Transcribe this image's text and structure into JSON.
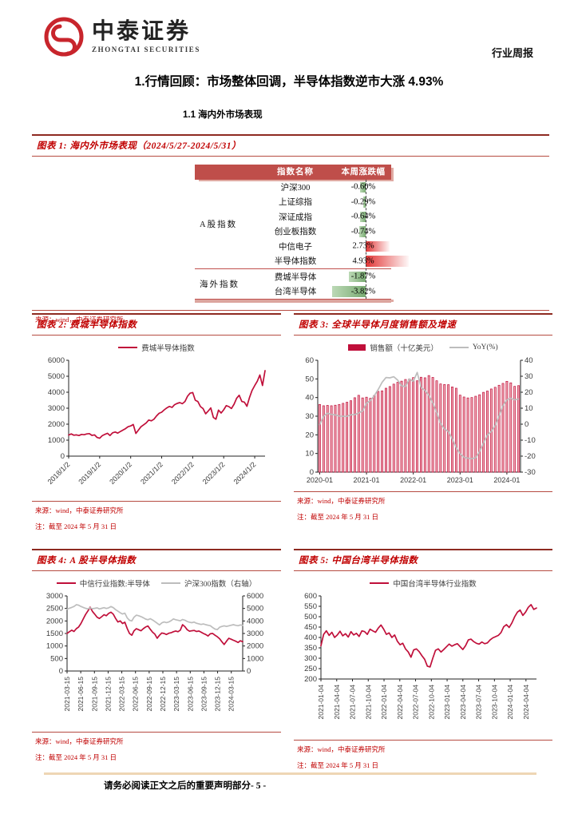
{
  "page": {
    "logo": {
      "cn": "中泰证券",
      "en": "ZHONGTAI SECURITIES"
    },
    "header_right": "行业周报",
    "title": "1.行情回顾：市场整体回调，半导体指数逆市大涨 4.93%",
    "subtitle": "1.1 海内外市场表现",
    "footer": {
      "disclaimer": "请务必阅读正文之后的重要声明部分",
      "page_number": "- 5 -"
    }
  },
  "figures": [
    {
      "title": "图表 1: 海内外市场表现（2024/5/27-2024/5/31）",
      "source": "来源：wind，中泰证券研究所"
    },
    {
      "title": "图表 2: 费城半导体指数",
      "source": "来源：wind，中泰证券研究所",
      "note": "注：截至 2024 年 5 月 31 日"
    },
    {
      "title": "图表 3: 全球半导体月度销售额及增速",
      "source": "来源：wind，中泰证券研究所",
      "note": "注：截至 2024 年 5 月 31 日"
    },
    {
      "title": "图表 4: A 股半导体指数",
      "source": "来源：wind，中泰证券研究所",
      "note": "注：截至 2024 年 5 月 31 日"
    },
    {
      "title": "图表 5: 中国台湾半导体指数",
      "source": "来源：wind，中泰证券研究所",
      "note": "注：截至 2024 年 5 月 31 日"
    }
  ],
  "colors": {
    "accent_red": "#c00000",
    "rule_dark": "#8e2a21",
    "rule_red": "#b64b41",
    "table_header_bg": "#bf4e4a",
    "chart_red": "#c00f3a",
    "chart_gray": "#bdbdbd",
    "bar_up": "#e23535",
    "bar_down": "#7fae77",
    "footer_rule": "#eed6b4",
    "logo_red": "#c8252c"
  },
  "chart_data": [
    {
      "type": "table",
      "title": "海内外市场表现（2024/5/27-2024/5/31）",
      "columns": [
        "指数名称",
        "本周涨跌幅"
      ],
      "groups": [
        {
          "label": "A股指数",
          "rows": [
            {
              "name": "沪深300",
              "value": -0.6
            },
            {
              "name": "上证综指",
              "value": -0.29
            },
            {
              "name": "深证成指",
              "value": -0.64
            },
            {
              "name": "创业板指数",
              "value": -0.74
            },
            {
              "name": "中信电子",
              "value": 2.73
            },
            {
              "name": "半导体指数",
              "value": 4.93
            }
          ]
        },
        {
          "label": "海外指数",
          "rows": [
            {
              "name": "费城半导体",
              "value": -1.87
            },
            {
              "name": "台湾半导体",
              "value": -3.82
            }
          ]
        }
      ],
      "value_format": "percent"
    },
    {
      "type": "line",
      "title": "费城半导体指数",
      "ylim": [
        0,
        6000,
        1000
      ],
      "x_ticks": {
        "labels": [
          "2018/1/2",
          "2019/1/2",
          "2020/1/2",
          "2021/1/2",
          "2022/1/2",
          "2023/1/2",
          "2024/1/2"
        ],
        "positions": [
          0,
          0.1579,
          0.3158,
          0.4737,
          0.6316,
          0.7895,
          0.9474
        ]
      },
      "series": [
        {
          "name": "费城半导体指数",
          "kind": "line",
          "axis": "left",
          "color": "#c00f3a",
          "values": [
            1320,
            1390,
            1310,
            1330,
            1290,
            1360,
            1340,
            1390,
            1410,
            1300,
            1330,
            1170,
            1120,
            1280,
            1360,
            1430,
            1290,
            1460,
            1510,
            1440,
            1540,
            1630,
            1720,
            1840,
            1890,
            1980,
            1420,
            1630,
            1840,
            1960,
            2080,
            2260,
            2210,
            2310,
            2520,
            2680,
            2750,
            2900,
            3020,
            3110,
            3050,
            3220,
            3300,
            3350,
            3280,
            3420,
            3750,
            3940,
            3980,
            3500,
            3420,
            3100,
            2980,
            2650,
            2820,
            3020,
            2420,
            2310,
            2880,
            2700,
            2900,
            3160,
            3100,
            2980,
            3250,
            3620,
            3810,
            3420,
            3380,
            3120,
            3680,
            4120,
            4420,
            4690,
            5080,
            4420,
            5350
          ]
        }
      ]
    },
    {
      "type": "bar+line",
      "title": "全球半导体月度销售额及增速",
      "ylim": [
        0,
        60,
        10
      ],
      "ylim_right": [
        -30,
        40,
        10
      ],
      "x_ticks": {
        "labels": [
          "2020-01",
          "2021-01",
          "2022-01",
          "2023-01",
          "2024-01"
        ],
        "positions": [
          0.0096,
          0.2404,
          0.4712,
          0.7019,
          0.9327
        ]
      },
      "series": [
        {
          "name": "销售额（十亿美元）",
          "kind": "bar",
          "axis": "left",
          "color": "#c00f3a",
          "values": [
            36.3,
            35.6,
            35.8,
            35.6,
            35.9,
            36.3,
            36.9,
            37.5,
            38.3,
            39.9,
            41.2,
            39.8,
            40.2,
            39.6,
            41.1,
            43.3,
            43.6,
            45.0,
            45.9,
            47.2,
            48.2,
            48.8,
            49.7,
            49.9,
            50.7,
            49.0,
            50.9,
            50.6,
            51.8,
            50.8,
            49.0,
            47.3,
            47.0,
            46.9,
            45.7,
            45.0,
            41.3,
            40.3,
            39.8,
            40.0,
            40.7,
            41.5,
            42.8,
            43.5,
            44.6,
            45.5,
            46.6,
            47.6,
            48.7,
            47.9,
            46.0,
            46.4
          ]
        },
        {
          "name": "YoY(%)",
          "kind": "line",
          "axis": "right",
          "color": "#bdbdbd",
          "values": [
            -0.3,
            5.0,
            6.9,
            6.1,
            5.8,
            5.1,
            4.9,
            4.9,
            5.9,
            6.0,
            7.0,
            8.3,
            13.2,
            14.7,
            17.8,
            21.7,
            26.2,
            29.2,
            29.0,
            29.7,
            27.6,
            24.0,
            23.5,
            28.3,
            26.8,
            32.4,
            23.0,
            21.1,
            18.0,
            13.3,
            7.3,
            0.5,
            -3.0,
            -4.6,
            -9.2,
            -14.7,
            -18.5,
            -20.7,
            -21.3,
            -21.6,
            -21.1,
            -17.3,
            -11.8,
            -6.8,
            -4.5,
            -0.7,
            5.3,
            11.6,
            15.2,
            16.3,
            15.2,
            15.8
          ]
        }
      ]
    },
    {
      "type": "line",
      "title": "A股半导体指数",
      "ylim": [
        0,
        3000,
        500
      ],
      "ylim_right": [
        0,
        6000,
        1000
      ],
      "x_ticks": {
        "labels": [
          "2021-03-15",
          "2021-06-15",
          "2021-09-15",
          "2021-12-15",
          "2022-03-15",
          "2022-06-15",
          "2022-09-15",
          "2022-12-15",
          "2023-03-15",
          "2023-06-15",
          "2023-09-15",
          "2023-12-15",
          "2024-03-15"
        ],
        "positions": [
          0,
          0.0779,
          0.1558,
          0.2338,
          0.3117,
          0.3896,
          0.4675,
          0.5455,
          0.6234,
          0.7013,
          0.7792,
          0.8571,
          0.9351
        ]
      },
      "series": [
        {
          "name": "中信行业指数:半导体",
          "kind": "line",
          "axis": "left",
          "color": "#c00f3a",
          "values": [
            1500,
            1570,
            1630,
            1580,
            1690,
            1760,
            1900,
            2080,
            2260,
            2400,
            2550,
            2380,
            2270,
            2150,
            2100,
            2170,
            2250,
            2210,
            2300,
            2350,
            2270,
            2100,
            1960,
            2000,
            1900,
            1950,
            1700,
            1500,
            1430,
            1610,
            1690,
            1650,
            1610,
            1690,
            1760,
            1800,
            1670,
            1550,
            1470,
            1310,
            1430,
            1520,
            1500,
            1460,
            1510,
            1530,
            1570,
            1600,
            1570,
            1630,
            1850,
            1770,
            1650,
            1590,
            1610,
            1620,
            1580,
            1600,
            1550,
            1500,
            1460,
            1400,
            1490,
            1500,
            1430,
            1370,
            1290,
            1170,
            1060,
            1190,
            1310,
            1270,
            1230,
            1190,
            1140,
            1210,
            1170
          ]
        },
        {
          "name": "沪深300指数（右轴）",
          "kind": "line",
          "axis": "right",
          "color": "#bdbdbd",
          "values": [
            4950,
            5020,
            5080,
            5160,
            5300,
            5260,
            5160,
            5080,
            5010,
            4960,
            5050,
            4980,
            5010,
            5050,
            4960,
            5010,
            5060,
            5000,
            5050,
            5150,
            5060,
            4900,
            4780,
            4650,
            4560,
            4620,
            4250,
            4050,
            4000,
            4300,
            4460,
            4420,
            4350,
            4260,
            4150,
            4100,
            4180,
            4080,
            3950,
            3820,
            3680,
            3850,
            3920,
            3870,
            3920,
            4020,
            4160,
            4100,
            4060,
            4010,
            4120,
            4060,
            3960,
            3900,
            3860,
            3910,
            3820,
            3770,
            3720,
            3760,
            3700,
            3660,
            3620,
            3470,
            3350,
            3310,
            3500,
            3560,
            3610,
            3560,
            3610,
            3660,
            3700,
            3650,
            3620,
            3680,
            3650
          ]
        }
      ]
    },
    {
      "type": "line",
      "title": "中国台湾半导体指数",
      "ylim": [
        200,
        600,
        50
      ],
      "x_ticks": {
        "labels": [
          "2021-01-04",
          "2021-04-04",
          "2021-07-04",
          "2021-10-04",
          "2022-01-04",
          "2022-04-04",
          "2022-07-04",
          "2022-10-04",
          "2023-01-04",
          "2023-04-04",
          "2023-07-04",
          "2023-10-04",
          "2024-01-04",
          "2024-04-04"
        ],
        "positions": [
          0,
          0.0732,
          0.1463,
          0.2195,
          0.2927,
          0.3659,
          0.439,
          0.5122,
          0.5854,
          0.6585,
          0.7317,
          0.8049,
          0.878,
          0.9512
        ]
      },
      "series": [
        {
          "name": "中国台湾半导体行业指数",
          "kind": "line",
          "axis": "left",
          "color": "#c00f3a",
          "values": [
            360,
            415,
            432,
            410,
            425,
            400,
            412,
            430,
            408,
            418,
            402,
            428,
            412,
            420,
            405,
            432,
            428,
            415,
            440,
            432,
            425,
            445,
            460,
            440,
            415,
            422,
            400,
            412,
            382,
            365,
            372,
            345,
            330,
            305,
            340,
            345,
            332,
            312,
            295,
            262,
            258,
            300,
            338,
            345,
            330,
            342,
            355,
            368,
            358,
            365,
            370,
            356,
            342,
            360,
            388,
            392,
            380,
            372,
            368,
            378,
            370,
            374,
            388,
            398,
            404,
            410,
            424,
            452,
            462,
            448,
            470,
            500,
            522,
            532,
            506,
            522,
            545,
            558,
            535,
            542
          ]
        }
      ]
    }
  ]
}
